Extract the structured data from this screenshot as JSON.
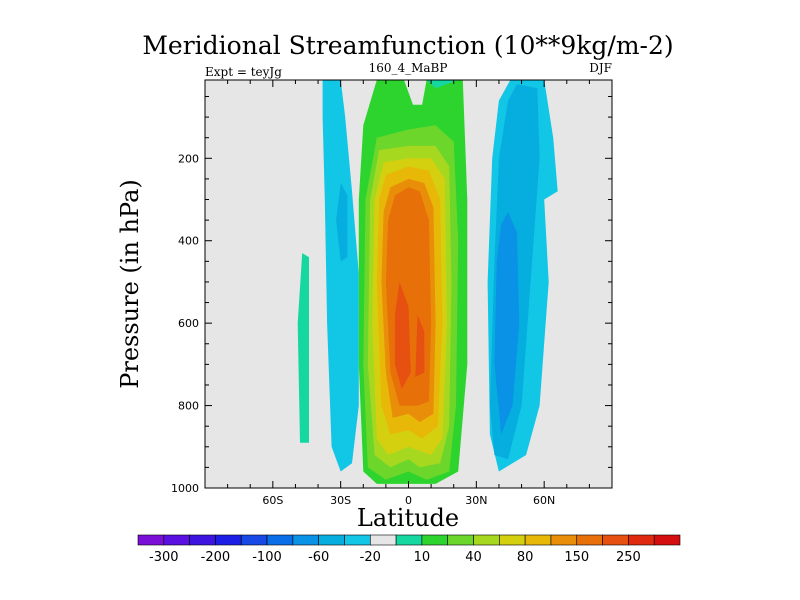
{
  "chart_data": {
    "type": "heatmap",
    "title": "Meridional Streamfunction (10**9kg/m-2)",
    "subtitle_left": "Expt = teyJg",
    "subtitle_center": "160_4_MaBP",
    "subtitle_right": "DJF",
    "xlabel": "Latitude",
    "ylabel": "Pressure (in hPa)",
    "xlim": [
      -90,
      90
    ],
    "ylim": [
      1000,
      10
    ],
    "x_ticks": [
      {
        "value": -60,
        "label": "60S"
      },
      {
        "value": -30,
        "label": "30S"
      },
      {
        "value": 0,
        "label": "0"
      },
      {
        "value": 30,
        "label": "30N"
      },
      {
        "value": 60,
        "label": "60N"
      }
    ],
    "y_ticks": [
      {
        "value": 200,
        "label": "200"
      },
      {
        "value": 400,
        "label": "400"
      },
      {
        "value": 600,
        "label": "600"
      },
      {
        "value": 800,
        "label": "800"
      },
      {
        "value": 1000,
        "label": "1000"
      }
    ],
    "background_color": "#e6e6e6",
    "colorbar": {
      "colors": [
        "#7a10d8",
        "#5a10e0",
        "#3d14e0",
        "#1c1ee6",
        "#1848e6",
        "#0a6ee8",
        "#0a92e6",
        "#06aee0",
        "#12c6e6",
        "#e6e6e6",
        "#14d8a0",
        "#2ed42e",
        "#6cd62a",
        "#a6d820",
        "#d4d010",
        "#e8b808",
        "#e88e08",
        "#e87008",
        "#e65010",
        "#e02a10",
        "#d40e0e"
      ],
      "labels": [
        "-300",
        "-200",
        "-100",
        "-60",
        "-20",
        "10",
        "40",
        "80",
        "150",
        "250"
      ],
      "label_boundaries": [
        1,
        3,
        5,
        7,
        9,
        11,
        13,
        15,
        17,
        19
      ]
    },
    "contour_regions": [
      {
        "level": 10,
        "color": "#14d8a0",
        "polygon": [
          [
            -47,
            430
          ],
          [
            -44,
            440
          ],
          [
            -44,
            890
          ],
          [
            -48,
            890
          ],
          [
            -49,
            600
          ]
        ]
      },
      {
        "level": -20,
        "color": "#12c6e6",
        "polygon": [
          [
            -38,
            10
          ],
          [
            -30,
            10
          ],
          [
            -28,
            100
          ],
          [
            -25,
            280
          ],
          [
            -22,
            480
          ],
          [
            -22,
            800
          ],
          [
            -25,
            940
          ],
          [
            -30,
            960
          ],
          [
            -34,
            900
          ],
          [
            -36,
            600
          ],
          [
            -37,
            300
          ],
          [
            -38,
            100
          ]
        ]
      },
      {
        "level": -40,
        "color": "#06aee0",
        "polygon": [
          [
            -30,
            260
          ],
          [
            -27,
            290
          ],
          [
            -27,
            440
          ],
          [
            -30,
            450
          ],
          [
            -32,
            350
          ]
        ]
      },
      {
        "level": -20,
        "color": "#12c6e6",
        "polygon": [
          [
            45,
            10
          ],
          [
            60,
            10
          ],
          [
            64,
            150
          ],
          [
            66,
            280
          ],
          [
            60,
            300
          ],
          [
            62,
            500
          ],
          [
            58,
            800
          ],
          [
            52,
            920
          ],
          [
            40,
            960
          ],
          [
            36,
            870
          ],
          [
            35,
            500
          ],
          [
            37,
            200
          ],
          [
            40,
            60
          ]
        ]
      },
      {
        "level": -40,
        "color": "#06aee0",
        "polygon": [
          [
            44,
            60
          ],
          [
            48,
            20
          ],
          [
            57,
            30
          ],
          [
            58,
            200
          ],
          [
            54,
            500
          ],
          [
            50,
            800
          ],
          [
            44,
            930
          ],
          [
            38,
            920
          ],
          [
            36,
            800
          ],
          [
            38,
            450
          ],
          [
            40,
            200
          ]
        ]
      },
      {
        "level": -60,
        "color": "#0a92e6",
        "polygon": [
          [
            44,
            330
          ],
          [
            48,
            380
          ],
          [
            49,
            600
          ],
          [
            46,
            800
          ],
          [
            41,
            870
          ],
          [
            38,
            700
          ],
          [
            39,
            450
          ],
          [
            41,
            360
          ]
        ]
      },
      {
        "level": 20,
        "color": "#2ed42e",
        "polygon": [
          [
            -14,
            10
          ],
          [
            -2,
            10
          ],
          [
            2,
            70
          ],
          [
            6,
            70
          ],
          [
            8,
            10
          ],
          [
            24,
            10
          ],
          [
            26,
            300
          ],
          [
            26,
            700
          ],
          [
            22,
            960
          ],
          [
            12,
            990
          ],
          [
            0,
            990
          ],
          [
            -14,
            990
          ],
          [
            -20,
            960
          ],
          [
            -22,
            700
          ],
          [
            -22,
            300
          ],
          [
            -20,
            120
          ]
        ]
      },
      {
        "level": 10,
        "color": "#14d8a0",
        "polygon": [
          [
            8,
            10
          ],
          [
            12,
            30
          ],
          [
            22,
            10
          ]
        ]
      },
      {
        "level": 40,
        "color": "#6cd62a",
        "polygon": [
          [
            -14,
            150
          ],
          [
            0,
            130
          ],
          [
            12,
            120
          ],
          [
            20,
            160
          ],
          [
            22,
            400
          ],
          [
            21,
            800
          ],
          [
            18,
            960
          ],
          [
            8,
            980
          ],
          [
            0,
            960
          ],
          [
            -10,
            980
          ],
          [
            -18,
            950
          ],
          [
            -20,
            700
          ],
          [
            -19,
            300
          ]
        ]
      },
      {
        "level": 60,
        "color": "#a6d820",
        "polygon": [
          [
            -13,
            180
          ],
          [
            0,
            170
          ],
          [
            12,
            170
          ],
          [
            18,
            220
          ],
          [
            19,
            500
          ],
          [
            18,
            850
          ],
          [
            14,
            940
          ],
          [
            5,
            950
          ],
          [
            0,
            930
          ],
          [
            -8,
            950
          ],
          [
            -15,
            920
          ],
          [
            -18,
            700
          ],
          [
            -17,
            300
          ]
        ]
      },
      {
        "level": 80,
        "color": "#d4d010",
        "polygon": [
          [
            -11,
            210
          ],
          [
            0,
            200
          ],
          [
            10,
            200
          ],
          [
            16,
            250
          ],
          [
            17,
            600
          ],
          [
            15,
            880
          ],
          [
            10,
            920
          ],
          [
            0,
            900
          ],
          [
            -9,
            920
          ],
          [
            -14,
            880
          ],
          [
            -16,
            600
          ],
          [
            -15,
            300
          ]
        ]
      },
      {
        "level": 100,
        "color": "#e8b808",
        "polygon": [
          [
            -10,
            240
          ],
          [
            0,
            220
          ],
          [
            9,
            230
          ],
          [
            14,
            300
          ],
          [
            15,
            600
          ],
          [
            13,
            850
          ],
          [
            6,
            880
          ],
          [
            0,
            860
          ],
          [
            -8,
            870
          ],
          [
            -12,
            800
          ],
          [
            -14,
            500
          ],
          [
            -13,
            300
          ]
        ]
      },
      {
        "level": 150,
        "color": "#e88e08",
        "polygon": [
          [
            -8,
            270
          ],
          [
            0,
            250
          ],
          [
            7,
            260
          ],
          [
            11,
            320
          ],
          [
            12,
            600
          ],
          [
            11,
            820
          ],
          [
            5,
            840
          ],
          [
            0,
            820
          ],
          [
            -7,
            830
          ],
          [
            -10,
            720
          ],
          [
            -12,
            500
          ],
          [
            -11,
            330
          ]
        ]
      },
      {
        "level": 200,
        "color": "#e87008",
        "polygon": [
          [
            -6,
            290
          ],
          [
            0,
            270
          ],
          [
            5,
            280
          ],
          [
            9,
            350
          ],
          [
            10,
            600
          ],
          [
            9,
            790
          ],
          [
            4,
            800
          ],
          [
            -4,
            800
          ],
          [
            -8,
            720
          ],
          [
            -10,
            500
          ],
          [
            -9,
            350
          ]
        ]
      },
      {
        "level": 250,
        "color": "#e65010",
        "polygon": [
          [
            -4,
            500
          ],
          [
            0,
            560
          ],
          [
            1,
            720
          ],
          [
            -3,
            760
          ],
          [
            -6,
            700
          ],
          [
            -6,
            580
          ]
        ]
      },
      {
        "level": 250,
        "color": "#e65010",
        "polygon": [
          [
            4,
            580
          ],
          [
            7,
            620
          ],
          [
            7,
            720
          ],
          [
            3,
            730
          ]
        ]
      }
    ]
  }
}
